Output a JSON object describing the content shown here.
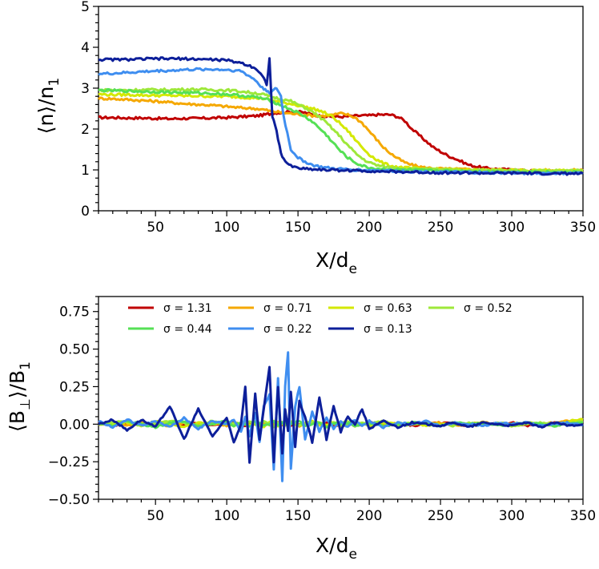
{
  "chart_data": [
    {
      "type": "line",
      "panel": "top",
      "ylabel_main": "⟨n⟩/n",
      "ylabel_sub": "1",
      "xlabel_main": "X/d",
      "xlabel_sub": "e",
      "xlim": [
        10,
        350
      ],
      "ylim": [
        0,
        5
      ],
      "xticks": [
        50,
        100,
        150,
        200,
        250,
        300,
        350
      ],
      "yticks": [
        0,
        1,
        2,
        3,
        4,
        5
      ],
      "x": [
        10,
        20,
        30,
        40,
        50,
        60,
        70,
        80,
        90,
        100,
        110,
        120,
        125,
        128,
        130,
        132,
        135,
        138,
        140,
        145,
        150,
        155,
        160,
        165,
        170,
        175,
        180,
        185,
        190,
        195,
        200,
        205,
        210,
        215,
        220,
        225,
        230,
        235,
        240,
        245,
        250,
        255,
        260,
        270,
        280,
        290,
        300,
        310,
        320,
        330,
        340,
        350
      ],
      "series": [
        {
          "name": "σ = 1.31",
          "color": "#c00000",
          "values": [
            2.28,
            2.28,
            2.27,
            2.27,
            2.26,
            2.25,
            2.26,
            2.26,
            2.27,
            2.28,
            2.3,
            2.32,
            2.34,
            2.36,
            2.37,
            2.38,
            2.4,
            2.4,
            2.41,
            2.42,
            2.42,
            2.4,
            2.35,
            2.32,
            2.31,
            2.3,
            2.3,
            2.31,
            2.32,
            2.33,
            2.33,
            2.35,
            2.35,
            2.35,
            2.3,
            2.2,
            2.0,
            1.85,
            1.7,
            1.55,
            1.45,
            1.35,
            1.28,
            1.12,
            1.05,
            1.02,
            1.0,
            0.98,
            0.97,
            0.97,
            0.97,
            0.97
          ]
        },
        {
          "name": "σ = 0.71",
          "color": "#f5a800",
          "values": [
            2.75,
            2.74,
            2.72,
            2.7,
            2.68,
            2.65,
            2.62,
            2.6,
            2.58,
            2.55,
            2.52,
            2.5,
            2.48,
            2.46,
            2.44,
            2.43,
            2.42,
            2.41,
            2.4,
            2.38,
            2.36,
            2.35,
            2.33,
            2.32,
            2.33,
            2.35,
            2.38,
            2.35,
            2.28,
            2.15,
            1.95,
            1.75,
            1.55,
            1.4,
            1.28,
            1.18,
            1.12,
            1.08,
            1.05,
            1.04,
            1.03,
            1.02,
            1.02,
            1.01,
            1.0,
            1.0,
            1.0,
            0.99,
            0.99,
            0.99,
            0.99,
            0.99
          ]
        },
        {
          "name": "σ = 0.63",
          "color": "#d4e800",
          "values": [
            2.85,
            2.84,
            2.84,
            2.83,
            2.82,
            2.82,
            2.81,
            2.81,
            2.8,
            2.8,
            2.78,
            2.76,
            2.75,
            2.73,
            2.72,
            2.7,
            2.68,
            2.66,
            2.64,
            2.62,
            2.58,
            2.54,
            2.5,
            2.45,
            2.38,
            2.28,
            2.12,
            1.95,
            1.75,
            1.55,
            1.38,
            1.25,
            1.16,
            1.1,
            1.07,
            1.05,
            1.04,
            1.03,
            1.02,
            1.02,
            1.01,
            1.01,
            1.0,
            1.0,
            1.0,
            0.99,
            0.99,
            0.99,
            0.98,
            0.98,
            0.98,
            0.98
          ]
        },
        {
          "name": "σ = 0.52",
          "color": "#9ee83a",
          "values": [
            2.95,
            2.95,
            2.95,
            2.96,
            2.96,
            2.96,
            2.97,
            2.97,
            2.96,
            2.95,
            2.92,
            2.88,
            2.85,
            2.82,
            2.8,
            2.78,
            2.76,
            2.74,
            2.72,
            2.68,
            2.6,
            2.52,
            2.42,
            2.3,
            2.15,
            1.98,
            1.8,
            1.6,
            1.42,
            1.28,
            1.18,
            1.12,
            1.08,
            1.06,
            1.05,
            1.04,
            1.03,
            1.02,
            1.02,
            1.01,
            1.01,
            1.0,
            1.0,
            1.0,
            0.99,
            0.99,
            0.99,
            0.98,
            0.98,
            0.98,
            0.98,
            0.98
          ]
        },
        {
          "name": "σ = 0.44",
          "color": "#55e055",
          "values": [
            2.95,
            2.94,
            2.93,
            2.92,
            2.91,
            2.9,
            2.89,
            2.88,
            2.87,
            2.85,
            2.82,
            2.78,
            2.75,
            2.72,
            2.7,
            2.67,
            2.63,
            2.58,
            2.55,
            2.48,
            2.4,
            2.3,
            2.18,
            2.02,
            1.85,
            1.65,
            1.45,
            1.3,
            1.18,
            1.1,
            1.05,
            1.03,
            1.02,
            1.01,
            1.0,
            1.0,
            0.99,
            0.99,
            0.98,
            0.98,
            0.98,
            0.97,
            0.97,
            0.97,
            0.96,
            0.96,
            0.95,
            0.95,
            0.95,
            0.94,
            0.94,
            0.94
          ]
        },
        {
          "name": "σ = 0.22",
          "color": "#3f8ef0",
          "values": [
            3.35,
            3.36,
            3.38,
            3.4,
            3.42,
            3.43,
            3.45,
            3.46,
            3.46,
            3.45,
            3.42,
            3.2,
            3.0,
            2.95,
            2.9,
            2.92,
            3.0,
            2.8,
            2.3,
            1.5,
            1.3,
            1.2,
            1.12,
            1.08,
            1.05,
            1.03,
            1.02,
            1.01,
            1.0,
            1.0,
            0.99,
            0.99,
            0.98,
            0.98,
            0.97,
            0.97,
            0.96,
            0.96,
            0.95,
            0.95,
            0.95,
            0.94,
            0.94,
            0.94,
            0.93,
            0.93,
            0.93,
            0.92,
            0.92,
            0.92,
            0.92,
            0.92
          ]
        },
        {
          "name": "σ = 0.13",
          "color": "#0d1f9a",
          "values": [
            3.7,
            3.7,
            3.7,
            3.71,
            3.72,
            3.72,
            3.72,
            3.71,
            3.7,
            3.68,
            3.62,
            3.5,
            3.3,
            3.1,
            3.72,
            2.3,
            1.95,
            1.4,
            1.25,
            1.1,
            1.05,
            1.03,
            1.02,
            1.01,
            1.0,
            1.0,
            0.99,
            0.99,
            0.98,
            0.98,
            0.97,
            0.97,
            0.96,
            0.96,
            0.95,
            0.95,
            0.95,
            0.94,
            0.94,
            0.94,
            0.93,
            0.93,
            0.93,
            0.93,
            0.92,
            0.92,
            0.92,
            0.92,
            0.91,
            0.91,
            0.91,
            0.91
          ]
        }
      ]
    },
    {
      "type": "line",
      "panel": "bottom",
      "ylabel_main": "⟨B",
      "ylabel_sub": "⊥",
      "ylabel_end": "⟩/B",
      "ylabel_end_sub": "1",
      "xlabel_main": "X/d",
      "xlabel_sub": "e",
      "xlim": [
        10,
        350
      ],
      "ylim": [
        -0.5,
        0.85
      ],
      "xticks": [
        50,
        100,
        150,
        200,
        250,
        300,
        350
      ],
      "yticks": [
        -0.5,
        -0.25,
        0.0,
        0.25,
        0.5,
        0.75
      ],
      "ytick_labels": [
        "−0.50",
        "−0.25",
        "0.00",
        "0.25",
        "0.50",
        "0.75"
      ],
      "legend": {
        "placement": "top",
        "columns": 4
      },
      "x": [
        10,
        20,
        30,
        40,
        50,
        60,
        70,
        80,
        90,
        100,
        105,
        110,
        113,
        116,
        120,
        123,
        126,
        130,
        133,
        136,
        139,
        141,
        143,
        145,
        148,
        151,
        155,
        160,
        165,
        170,
        175,
        180,
        185,
        190,
        195,
        200,
        210,
        220,
        230,
        240,
        250,
        260,
        270,
        280,
        290,
        300,
        310,
        320,
        330,
        340,
        350
      ],
      "series": [
        {
          "name": "σ = 1.31",
          "color": "#c00000",
          "values": [
            0.01,
            -0.01,
            0.01,
            0.0,
            -0.01,
            0.01,
            0.0,
            0.01,
            -0.01,
            0.0,
            0.01,
            0.0,
            -0.01,
            0.01,
            0.0,
            -0.01,
            0.01,
            0.0,
            0.01,
            -0.01,
            0.0,
            0.01,
            0.0,
            -0.01,
            0.01,
            0.0,
            -0.01,
            0.01,
            0.0,
            0.01,
            -0.01,
            0.0,
            0.01,
            0.0,
            -0.01,
            0.01,
            0.0,
            0.01,
            -0.01,
            0.0,
            0.01,
            0.0,
            -0.01,
            0.01,
            0.0,
            0.01,
            -0.01,
            0.0,
            0.01,
            0.0,
            0.0
          ]
        },
        {
          "name": "σ = 0.71",
          "color": "#f5a800",
          "values": [
            0.0,
            0.01,
            -0.01,
            0.01,
            0.0,
            -0.01,
            0.01,
            0.0,
            0.01,
            -0.01,
            0.0,
            0.01,
            0.0,
            -0.01,
            0.01,
            0.0,
            0.01,
            -0.01,
            0.0,
            0.01,
            0.0,
            -0.01,
            0.01,
            0.0,
            0.01,
            -0.01,
            0.0,
            0.01,
            0.0,
            -0.01,
            0.01,
            0.0,
            0.01,
            -0.01,
            0.0,
            0.01,
            0.0,
            -0.01,
            0.01,
            0.0,
            0.01,
            -0.01,
            0.0,
            0.01,
            0.0,
            -0.01,
            0.01,
            0.0,
            0.01,
            0.02,
            0.02
          ]
        },
        {
          "name": "σ = 0.63",
          "color": "#d4e800",
          "values": [
            0.01,
            0.0,
            0.01,
            -0.01,
            0.02,
            0.0,
            -0.02,
            0.01,
            0.0,
            0.02,
            -0.01,
            0.0,
            0.02,
            -0.01,
            0.01,
            0.0,
            -0.02,
            0.01,
            0.02,
            -0.01,
            0.0,
            0.01,
            -0.01,
            0.02,
            0.0,
            -0.01,
            0.01,
            0.02,
            -0.01,
            0.0,
            0.01,
            -0.02,
            0.0,
            0.01,
            0.0,
            -0.01,
            0.01,
            0.0,
            0.01,
            -0.01,
            0.0,
            0.01,
            0.0,
            -0.01,
            0.01,
            0.0,
            0.01,
            0.0,
            -0.01,
            0.02,
            0.03
          ]
        },
        {
          "name": "σ = 0.52",
          "color": "#9ee83a",
          "values": [
            0.0,
            0.01,
            0.02,
            -0.01,
            0.0,
            0.02,
            0.01,
            -0.01,
            0.02,
            0.0,
            0.01,
            -0.02,
            0.01,
            0.02,
            0.0,
            -0.01,
            0.02,
            0.01,
            -0.02,
            0.01,
            0.02,
            -0.01,
            0.0,
            0.02,
            0.01,
            -0.01,
            0.0,
            0.02,
            0.01,
            -0.02,
            0.01,
            0.0,
            0.02,
            -0.01,
            0.01,
            0.0,
            0.02,
            -0.01,
            0.0,
            0.01,
            0.0,
            -0.01,
            0.01,
            0.0,
            0.01,
            -0.01,
            0.0,
            0.01,
            0.0,
            0.01,
            0.02
          ]
        },
        {
          "name": "σ = 0.44",
          "color": "#55e055",
          "values": [
            0.01,
            -0.01,
            0.02,
            0.0,
            -0.02,
            0.01,
            0.02,
            -0.01,
            0.0,
            0.02,
            -0.01,
            0.01,
            0.0,
            -0.02,
            0.02,
            0.01,
            -0.01,
            0.0,
            0.02,
            -0.01,
            0.01,
            0.02,
            -0.02,
            0.0,
            0.01,
            0.02,
            -0.01,
            0.0,
            0.01,
            -0.02,
            0.01,
            0.0,
            0.01,
            -0.01,
            0.0,
            0.01,
            -0.01,
            0.0,
            0.01,
            0.0,
            -0.01,
            0.01,
            0.0,
            0.01,
            -0.01,
            0.0,
            0.01,
            0.0,
            -0.01,
            0.0,
            0.01
          ]
        },
        {
          "name": "σ = 0.22",
          "color": "#3f8ef0",
          "values": [
            0.02,
            -0.02,
            0.03,
            -0.01,
            0.02,
            -0.02,
            0.04,
            -0.03,
            0.02,
            0.0,
            0.03,
            -0.05,
            0.05,
            -0.08,
            0.08,
            -0.12,
            0.12,
            0.2,
            -0.3,
            0.3,
            -0.38,
            0.25,
            0.48,
            -0.3,
            0.12,
            0.25,
            -0.1,
            0.08,
            -0.05,
            0.04,
            -0.03,
            0.02,
            -0.02,
            0.03,
            -0.01,
            0.02,
            -0.02,
            0.01,
            0.0,
            0.02,
            -0.01,
            0.01,
            0.0,
            -0.01,
            0.01,
            0.0,
            0.01,
            -0.01,
            0.0,
            0.01,
            -0.01
          ]
        },
        {
          "name": "σ = 0.13",
          "color": "#0d1f9a",
          "values": [
            0.0,
            0.03,
            -0.04,
            0.03,
            -0.02,
            0.12,
            -0.1,
            0.1,
            -0.08,
            0.04,
            -0.12,
            0.0,
            0.25,
            -0.25,
            0.2,
            -0.1,
            0.1,
            0.38,
            -0.25,
            0.25,
            -0.2,
            0.1,
            -0.05,
            0.22,
            -0.15,
            0.15,
            0.05,
            -0.12,
            0.18,
            -0.1,
            0.12,
            -0.05,
            0.05,
            0.0,
            0.1,
            -0.03,
            0.02,
            -0.02,
            0.01,
            0.0,
            -0.01,
            0.01,
            -0.02,
            0.01,
            0.0,
            -0.01,
            0.01,
            -0.02,
            0.01,
            -0.01,
            0.0
          ]
        }
      ]
    }
  ]
}
